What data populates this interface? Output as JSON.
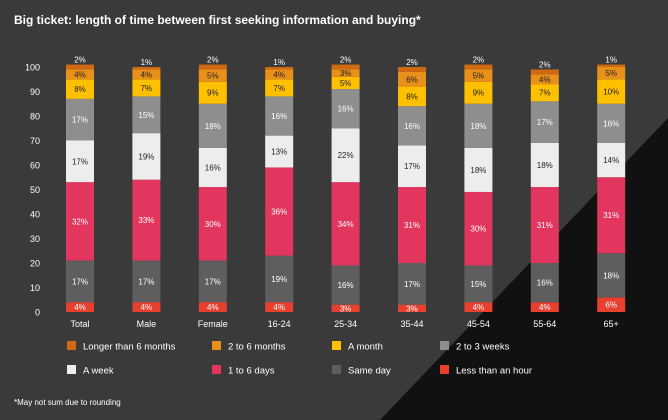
{
  "title": "Big ticket: length of time between first seeking information and buying*",
  "footnote": "*May not sum due to rounding",
  "chart_data": {
    "type": "bar",
    "stacked": true,
    "title": "Big ticket: length of time between first seeking information and buying*",
    "xlabel": "",
    "ylabel": "",
    "ylim": [
      0,
      100
    ],
    "yticks": [
      0,
      10,
      20,
      30,
      40,
      50,
      60,
      70,
      80,
      90,
      100
    ],
    "grid": false,
    "legend_position": "bottom",
    "categories": [
      "Total",
      "Male",
      "Female",
      "16-24",
      "25-34",
      "35-44",
      "45-54",
      "55-64",
      "65+"
    ],
    "series": [
      {
        "name": "Less than an hour",
        "color": "#e8402f",
        "values": [
          4,
          4,
          4,
          4,
          3,
          3,
          4,
          4,
          6
        ],
        "labels": [
          "4%",
          "4%",
          "4%",
          "4%",
          "3%",
          "3%",
          "4%",
          "4%",
          "6%"
        ]
      },
      {
        "name": "Same day",
        "color": "#5e5e5e",
        "values": [
          17,
          17,
          17,
          19,
          16,
          17,
          15,
          16,
          18
        ],
        "labels": [
          "17%",
          "17%",
          "17%",
          "19%",
          "16%",
          "17%",
          "15%",
          "16%",
          "18%"
        ]
      },
      {
        "name": "1 to 6 days",
        "color": "#e2365e",
        "values": [
          32,
          33,
          30,
          36,
          34,
          31,
          30,
          31,
          31
        ],
        "labels": [
          "32%",
          "33%",
          "30%",
          "36%",
          "34%",
          "31%",
          "30%",
          "31%",
          "31%"
        ]
      },
      {
        "name": "A week",
        "color": "#ededed",
        "values": [
          17,
          19,
          16,
          13,
          22,
          17,
          18,
          18,
          14
        ],
        "labels": [
          "17%",
          "19%",
          "16%",
          "13%",
          "22%",
          "17%",
          "18%",
          "18%",
          "14%"
        ]
      },
      {
        "name": "2 to 3 weeks",
        "color": "#8e8e8e",
        "values": [
          17,
          15,
          18,
          16,
          16,
          16,
          18,
          17,
          16
        ],
        "labels": [
          "17%",
          "15%",
          "18%",
          "16%",
          "16%",
          "16%",
          "18%",
          "17%",
          "16%"
        ]
      },
      {
        "name": "A month",
        "color": "#ffc000",
        "values": [
          8,
          7,
          9,
          7,
          5,
          8,
          9,
          7,
          10
        ],
        "labels": [
          "8%",
          "7%",
          "9%",
          "7%",
          "5%",
          "8%",
          "9%",
          "7%",
          "10%"
        ]
      },
      {
        "name": "2 to 6 months",
        "color": "#e8901a",
        "values": [
          4,
          4,
          5,
          4,
          3,
          6,
          5,
          4,
          5
        ],
        "labels": [
          "4%",
          "4%",
          "5%",
          "4%",
          "3%",
          "6%",
          "5%",
          "4%",
          "5%"
        ]
      },
      {
        "name": "Longer than 6 months",
        "color": "#cf6a12",
        "values": [
          2,
          1,
          2,
          1,
          2,
          2,
          2,
          2,
          1
        ],
        "labels": [
          "2%",
          "1%",
          "2%",
          "1%",
          "2%",
          "2%",
          "2%",
          "2%",
          "1%"
        ]
      }
    ],
    "legend_order": [
      "Longer than 6 months",
      "2 to 6 months",
      "A month",
      "2 to 3 weeks",
      "A week",
      "1 to 6 days",
      "Same day",
      "Less than an hour"
    ]
  }
}
